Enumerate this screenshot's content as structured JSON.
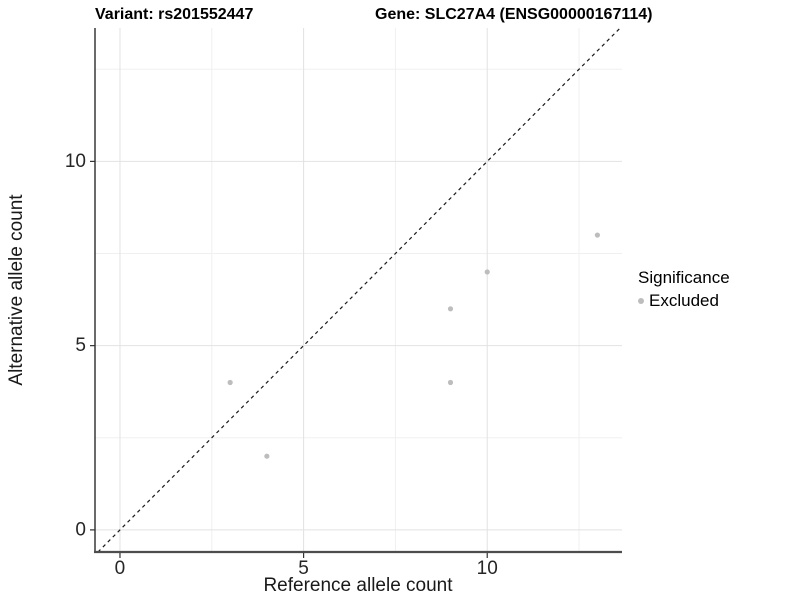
{
  "chart_data": {
    "type": "scatter",
    "title_left": "Variant: rs201552447",
    "title_right": "Gene: SLC27A4 (ENSG00000167114)",
    "xlabel": "Reference allele count",
    "ylabel": "Alternative allele count",
    "xlim": [
      -0.68,
      13.67
    ],
    "ylim": [
      -0.6,
      13.62
    ],
    "x_ticks": [
      0,
      5,
      10
    ],
    "y_ticks": [
      0,
      5,
      10
    ],
    "x_minor_gridlines": [
      2.5,
      7.5,
      12.5
    ],
    "y_minor_gridlines": [
      2.5,
      7.5,
      12.5
    ],
    "grid": true,
    "legend_position": "right",
    "identity_line": {
      "slope": 1,
      "intercept": 0,
      "style": "dashed",
      "color": "#1a1a1a"
    },
    "series": [
      {
        "name": "Excluded",
        "color": "#bdbdbd",
        "points": [
          {
            "x": 3,
            "y": 4
          },
          {
            "x": 4,
            "y": 2
          },
          {
            "x": 9,
            "y": 4
          },
          {
            "x": 9,
            "y": 6
          },
          {
            "x": 10,
            "y": 7
          },
          {
            "x": 13,
            "y": 8
          }
        ]
      }
    ],
    "legend": {
      "title": "Significance",
      "items": [
        {
          "label": "Excluded",
          "color": "#bdbdbd"
        }
      ]
    },
    "colors": {
      "major_grid": "#e2e2e2",
      "minor_grid": "#f0f0f0",
      "axis_line_y": "#1a1a1a",
      "axis_line_x": "#4d4d4d",
      "tick_mark": "#333333",
      "tick_text": "#262626"
    }
  }
}
